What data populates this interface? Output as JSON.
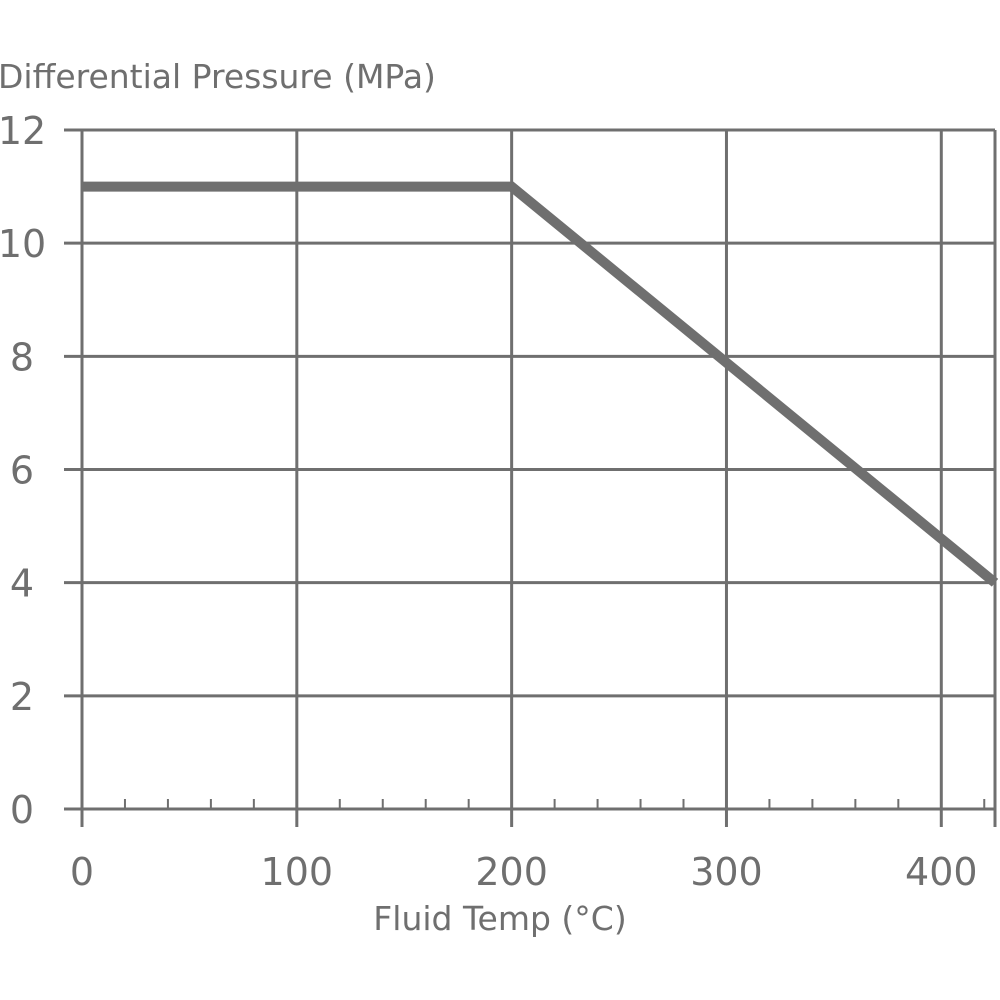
{
  "chart_data": {
    "type": "line",
    "ylabel": "Differential Pressure (MPa)",
    "xlabel": "Fluid Temp (°C)",
    "xlim": [
      0,
      425
    ],
    "ylim": [
      0,
      12
    ],
    "x_ticks": [
      0,
      100,
      200,
      300,
      400
    ],
    "y_ticks": [
      0,
      2,
      4,
      6,
      8,
      10,
      12
    ],
    "x_minor_step": 20,
    "grid": true,
    "series": [
      {
        "color": "#6f6f6f",
        "points": [
          {
            "x": 0,
            "y": 11
          },
          {
            "x": 200,
            "y": 11
          },
          {
            "x": 425,
            "y": 4
          }
        ]
      }
    ]
  }
}
